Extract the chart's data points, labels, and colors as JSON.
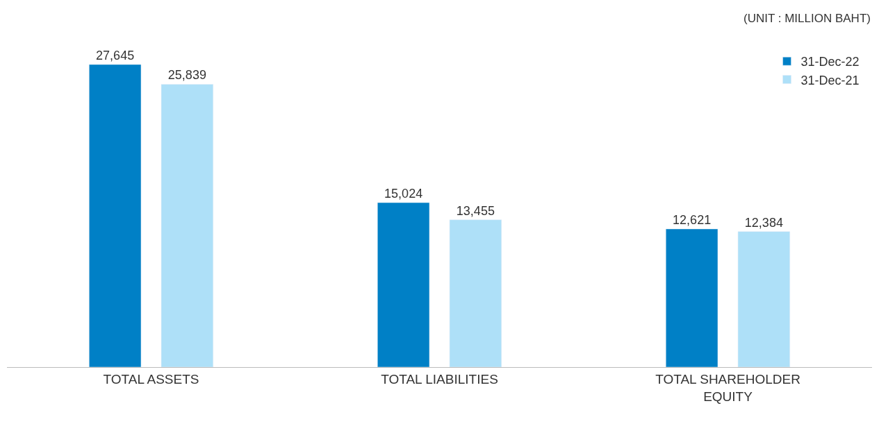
{
  "chart_data": {
    "type": "bar",
    "categories": [
      "TOTAL ASSETS",
      "TOTAL LIABILITIES",
      "TOTAL SHAREHOLDER EQUITY"
    ],
    "series": [
      {
        "name": "31-Dec-22",
        "color": "#0080c6",
        "values": [
          27645,
          15024,
          12621
        ],
        "value_labels": [
          "27,645",
          "15,024",
          "12,621"
        ]
      },
      {
        "name": "31-Dec-21",
        "color": "#aee0f8",
        "values": [
          25839,
          13455,
          12384
        ],
        "value_labels": [
          "25,839",
          "13,455",
          "12,384"
        ]
      }
    ],
    "legend": "top right",
    "annotations": [
      "(UNIT : MILLION BAHT)"
    ]
  }
}
